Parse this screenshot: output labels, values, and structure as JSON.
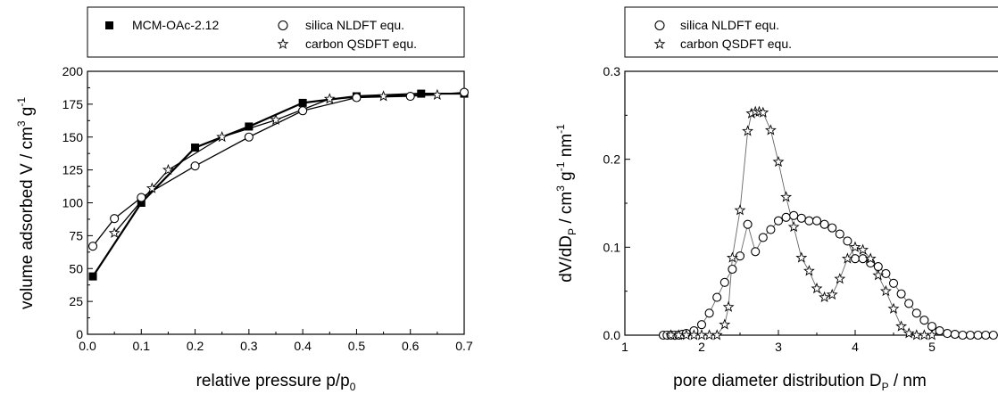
{
  "chart_data": [
    {
      "type": "line",
      "title": "",
      "xlabel": {
        "main": "relative pressure p/p",
        "sub": "0"
      },
      "ylabel": {
        "main": "volume adsorbed V / cm",
        "sup1": "3",
        "mid": " g",
        "sup2": "-1"
      },
      "xlim": [
        0,
        0.7
      ],
      "ylim": [
        0,
        200
      ],
      "x_ticks": [
        "0.0",
        "0.1",
        "0.2",
        "0.3",
        "0.4",
        "0.5",
        "0.6",
        "0.7"
      ],
      "y_ticks": [
        "0",
        "25",
        "50",
        "75",
        "100",
        "125",
        "150",
        "175",
        "200"
      ],
      "legend_position": "top",
      "series": [
        {
          "name": "MCM-OAc-2.12",
          "marker": "filled-square",
          "x": [
            0.01,
            0.1,
            0.2,
            0.3,
            0.4,
            0.5,
            0.62,
            0.7
          ],
          "y": [
            44,
            100,
            142,
            158,
            176,
            181,
            183,
            183
          ]
        },
        {
          "name": "silica NLDFT equ.",
          "marker": "open-circle",
          "x": [
            0.01,
            0.05,
            0.1,
            0.2,
            0.3,
            0.4,
            0.5,
            0.6,
            0.7
          ],
          "y": [
            67,
            88,
            104,
            128,
            150,
            170,
            180,
            181,
            184
          ]
        },
        {
          "name": "carbon QSDFT equ.",
          "marker": "open-star",
          "x": [
            0.05,
            0.12,
            0.15,
            0.25,
            0.35,
            0.45,
            0.55,
            0.65
          ],
          "y": [
            77,
            111,
            125,
            150,
            163,
            179,
            181,
            182
          ]
        }
      ]
    },
    {
      "type": "line",
      "title": "",
      "xlabel": {
        "main": "pore diameter distribution D",
        "sub": "P",
        "tail": " / nm"
      },
      "ylabel": {
        "main": "dV/dD",
        "sub": "P",
        "mid": " / cm",
        "sup1": "3",
        "mid2": " g",
        "sup2": "-1",
        "tail": " nm",
        "sup3": "-1"
      },
      "xlim": [
        1,
        6
      ],
      "ylim": [
        0,
        0.3
      ],
      "x_ticks": [
        "1",
        "2",
        "3",
        "4",
        "5",
        "6"
      ],
      "y_ticks": [
        "0.0",
        "0.1",
        "0.2",
        "0.3"
      ],
      "legend_position": "top",
      "series": [
        {
          "name": "silica NLDFT equ.",
          "marker": "open-circle",
          "x": [
            1.5,
            1.55,
            1.6,
            1.65,
            1.7,
            1.75,
            1.8,
            1.9,
            2.0,
            2.1,
            2.2,
            2.3,
            2.4,
            2.5,
            2.6,
            2.7,
            2.8,
            2.9,
            3.0,
            3.1,
            3.2,
            3.3,
            3.4,
            3.5,
            3.6,
            3.7,
            3.8,
            3.9,
            4.0,
            4.1,
            4.2,
            4.3,
            4.4,
            4.5,
            4.6,
            4.7,
            4.8,
            4.9,
            5.0,
            5.1,
            5.2,
            5.3,
            5.4,
            5.5,
            5.6,
            5.7,
            5.8
          ],
          "y": [
            0,
            0,
            0,
            0,
            0,
            0.001,
            0.002,
            0.005,
            0.012,
            0.025,
            0.043,
            0.06,
            0.075,
            0.09,
            0.126,
            0.095,
            0.111,
            0.12,
            0.13,
            0.134,
            0.136,
            0.133,
            0.13,
            0.13,
            0.126,
            0.122,
            0.115,
            0.107,
            0.087,
            0.087,
            0.082,
            0.078,
            0.07,
            0.059,
            0.047,
            0.036,
            0.025,
            0.017,
            0.01,
            0.005,
            0.002,
            0.001,
            0,
            0,
            0,
            0,
            0
          ]
        },
        {
          "name": "carbon QSDFT equ.",
          "marker": "open-star",
          "x": [
            1.6,
            1.7,
            1.8,
            1.9,
            2.0,
            2.1,
            2.2,
            2.3,
            2.35,
            2.4,
            2.5,
            2.6,
            2.65,
            2.7,
            2.75,
            2.8,
            2.9,
            3.0,
            3.1,
            3.2,
            3.3,
            3.4,
            3.5,
            3.6,
            3.7,
            3.8,
            3.9,
            4.0,
            4.1,
            4.2,
            4.3,
            4.4,
            4.5,
            4.6,
            4.7,
            4.8,
            4.9,
            5.0
          ],
          "y": [
            0,
            0,
            0,
            0,
            0,
            0,
            0,
            0.012,
            0.032,
            0.088,
            0.142,
            0.232,
            0.252,
            0.254,
            0.254,
            0.253,
            0.233,
            0.197,
            0.157,
            0.123,
            0.088,
            0.073,
            0.053,
            0.043,
            0.046,
            0.064,
            0.087,
            0.1,
            0.097,
            0.087,
            0.068,
            0.05,
            0.03,
            0.01,
            0.002,
            0,
            0,
            0
          ]
        }
      ]
    }
  ]
}
